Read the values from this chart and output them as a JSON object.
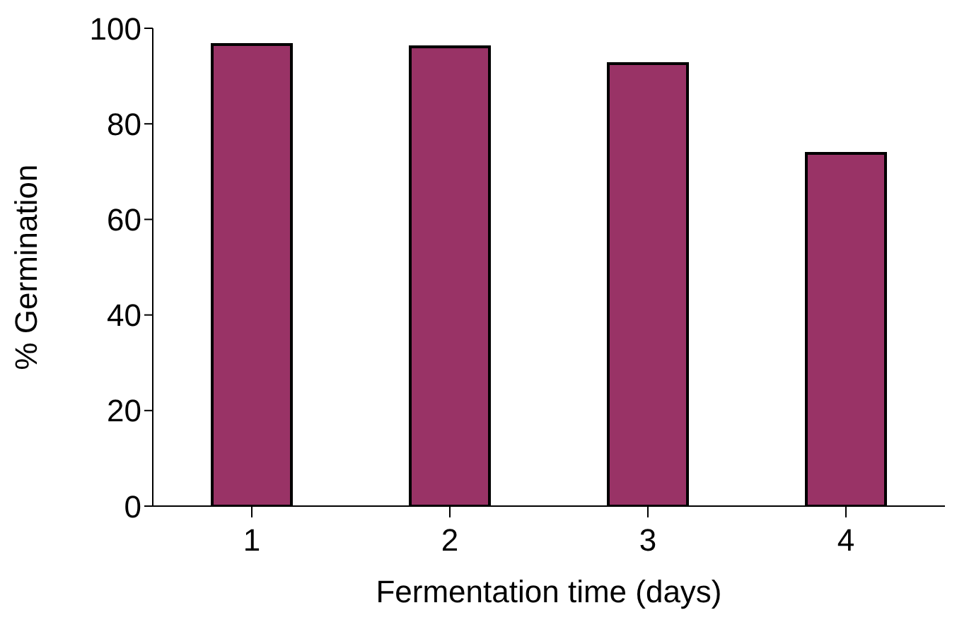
{
  "chart_data": {
    "type": "bar",
    "xlabel": "Fermentation time (days)",
    "ylabel": "% Germination",
    "categories": [
      "1",
      "2",
      "3",
      "4"
    ],
    "values": [
      96.6,
      96.1,
      92.6,
      73.8
    ],
    "color": "#993366",
    "ylim": [
      0,
      100
    ],
    "yticks": [
      0,
      20,
      40,
      60,
      80,
      100
    ],
    "grid": false
  }
}
